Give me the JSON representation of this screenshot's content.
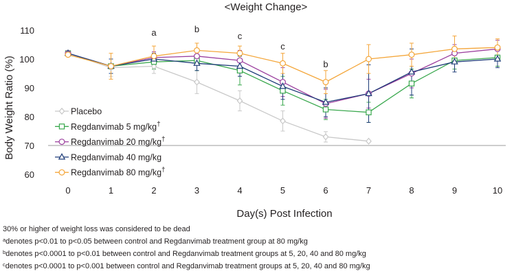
{
  "chart_data": {
    "type": "line",
    "title": "<Weight Change>",
    "xlabel": "Day(s) Post Infection",
    "ylabel": "Body Weight Ratio (%)",
    "x": [
      0,
      1,
      2,
      3,
      4,
      5,
      6,
      7,
      8,
      9,
      10
    ],
    "xticks": [
      "0",
      "1",
      "2",
      "3",
      "4",
      "5",
      "6",
      "7",
      "8",
      "9",
      "10"
    ],
    "ylim": [
      55,
      113
    ],
    "yticks": [
      60,
      70,
      80,
      90,
      100,
      110
    ],
    "reference_line": 70,
    "significance_labels": [
      {
        "x": 2,
        "label": "a"
      },
      {
        "x": 3,
        "label": "b"
      },
      {
        "x": 4,
        "label": "c"
      },
      {
        "x": 5,
        "label": "c"
      },
      {
        "x": 6,
        "label": "b"
      }
    ],
    "series": [
      {
        "name": "Placebo",
        "dagger": false,
        "color": "#c8c8c8",
        "marker": "diamond",
        "values": [
          102,
          97,
          97.5,
          92,
          85.5,
          78.5,
          73,
          71.5,
          null,
          null,
          null
        ],
        "errors": [
          0.5,
          3,
          2.5,
          4,
          3.5,
          3.5,
          1.8,
          0,
          null,
          null,
          null
        ]
      },
      {
        "name": "Regdanvimab 5 mg/kg",
        "dagger": true,
        "color": "#3aa84e",
        "marker": "square",
        "values": [
          102,
          97.5,
          99,
          99.5,
          96,
          89,
          82.5,
          81.5,
          91.5,
          99.5,
          100.5
        ],
        "errors": [
          0.5,
          2.5,
          2.5,
          3.5,
          5,
          5,
          3.5,
          3.5,
          5,
          3,
          3
        ]
      },
      {
        "name": "Regdanvimab 20 mg/kg",
        "dagger": true,
        "color": "#9b3f9e",
        "marker": "circle",
        "values": [
          102,
          97.5,
          100.5,
          101,
          99.5,
          92,
          84.5,
          88,
          95,
          102,
          103.5
        ],
        "errors": [
          0.5,
          2.5,
          2,
          2.5,
          3.5,
          5,
          5,
          5,
          5,
          3,
          3
        ]
      },
      {
        "name": "Regdanvimab 40 mg/kg",
        "dagger": false,
        "color": "#1e3c78",
        "marker": "triangle",
        "values": [
          102,
          97.5,
          100,
          98.5,
          97.5,
          90.5,
          85,
          88,
          95.5,
          99,
          100
        ],
        "errors": [
          0.5,
          2.5,
          2,
          2.5,
          3.5,
          4.5,
          5,
          10,
          8,
          3.5,
          3
        ]
      },
      {
        "name": "Regdanvimab 80 mg/kg",
        "dagger": true,
        "color": "#f4a63a",
        "marker": "circle",
        "values": [
          101.5,
          97.5,
          101,
          103,
          102,
          98.5,
          92,
          100,
          101.5,
          103.5,
          104
        ],
        "errors": [
          0.5,
          4.5,
          3.5,
          2.5,
          2.5,
          3.5,
          4,
          5,
          4,
          4.5,
          3
        ]
      }
    ]
  },
  "notes": {
    "line1": "30% or higher of weight loss was considered to be dead",
    "line2_mark": "a",
    "line2": "denotes p<0.01 to p<0.05 between control and Regdanvimab treatment group at 80 mg/kg",
    "line3_mark": "b",
    "line3": "denotes p<0.0001 to p<0.01 between control and Regdanvimab treatment groups at 5, 20, 40 and 80 mg/kg",
    "line4_mark": "c",
    "line4": "denotes p<0.0001 to p<0.001 between control and Regdanvimab treatment groups at 5, 20, 40 and 80 mg/kg"
  },
  "legend": {
    "dagger_symbol": "†"
  }
}
